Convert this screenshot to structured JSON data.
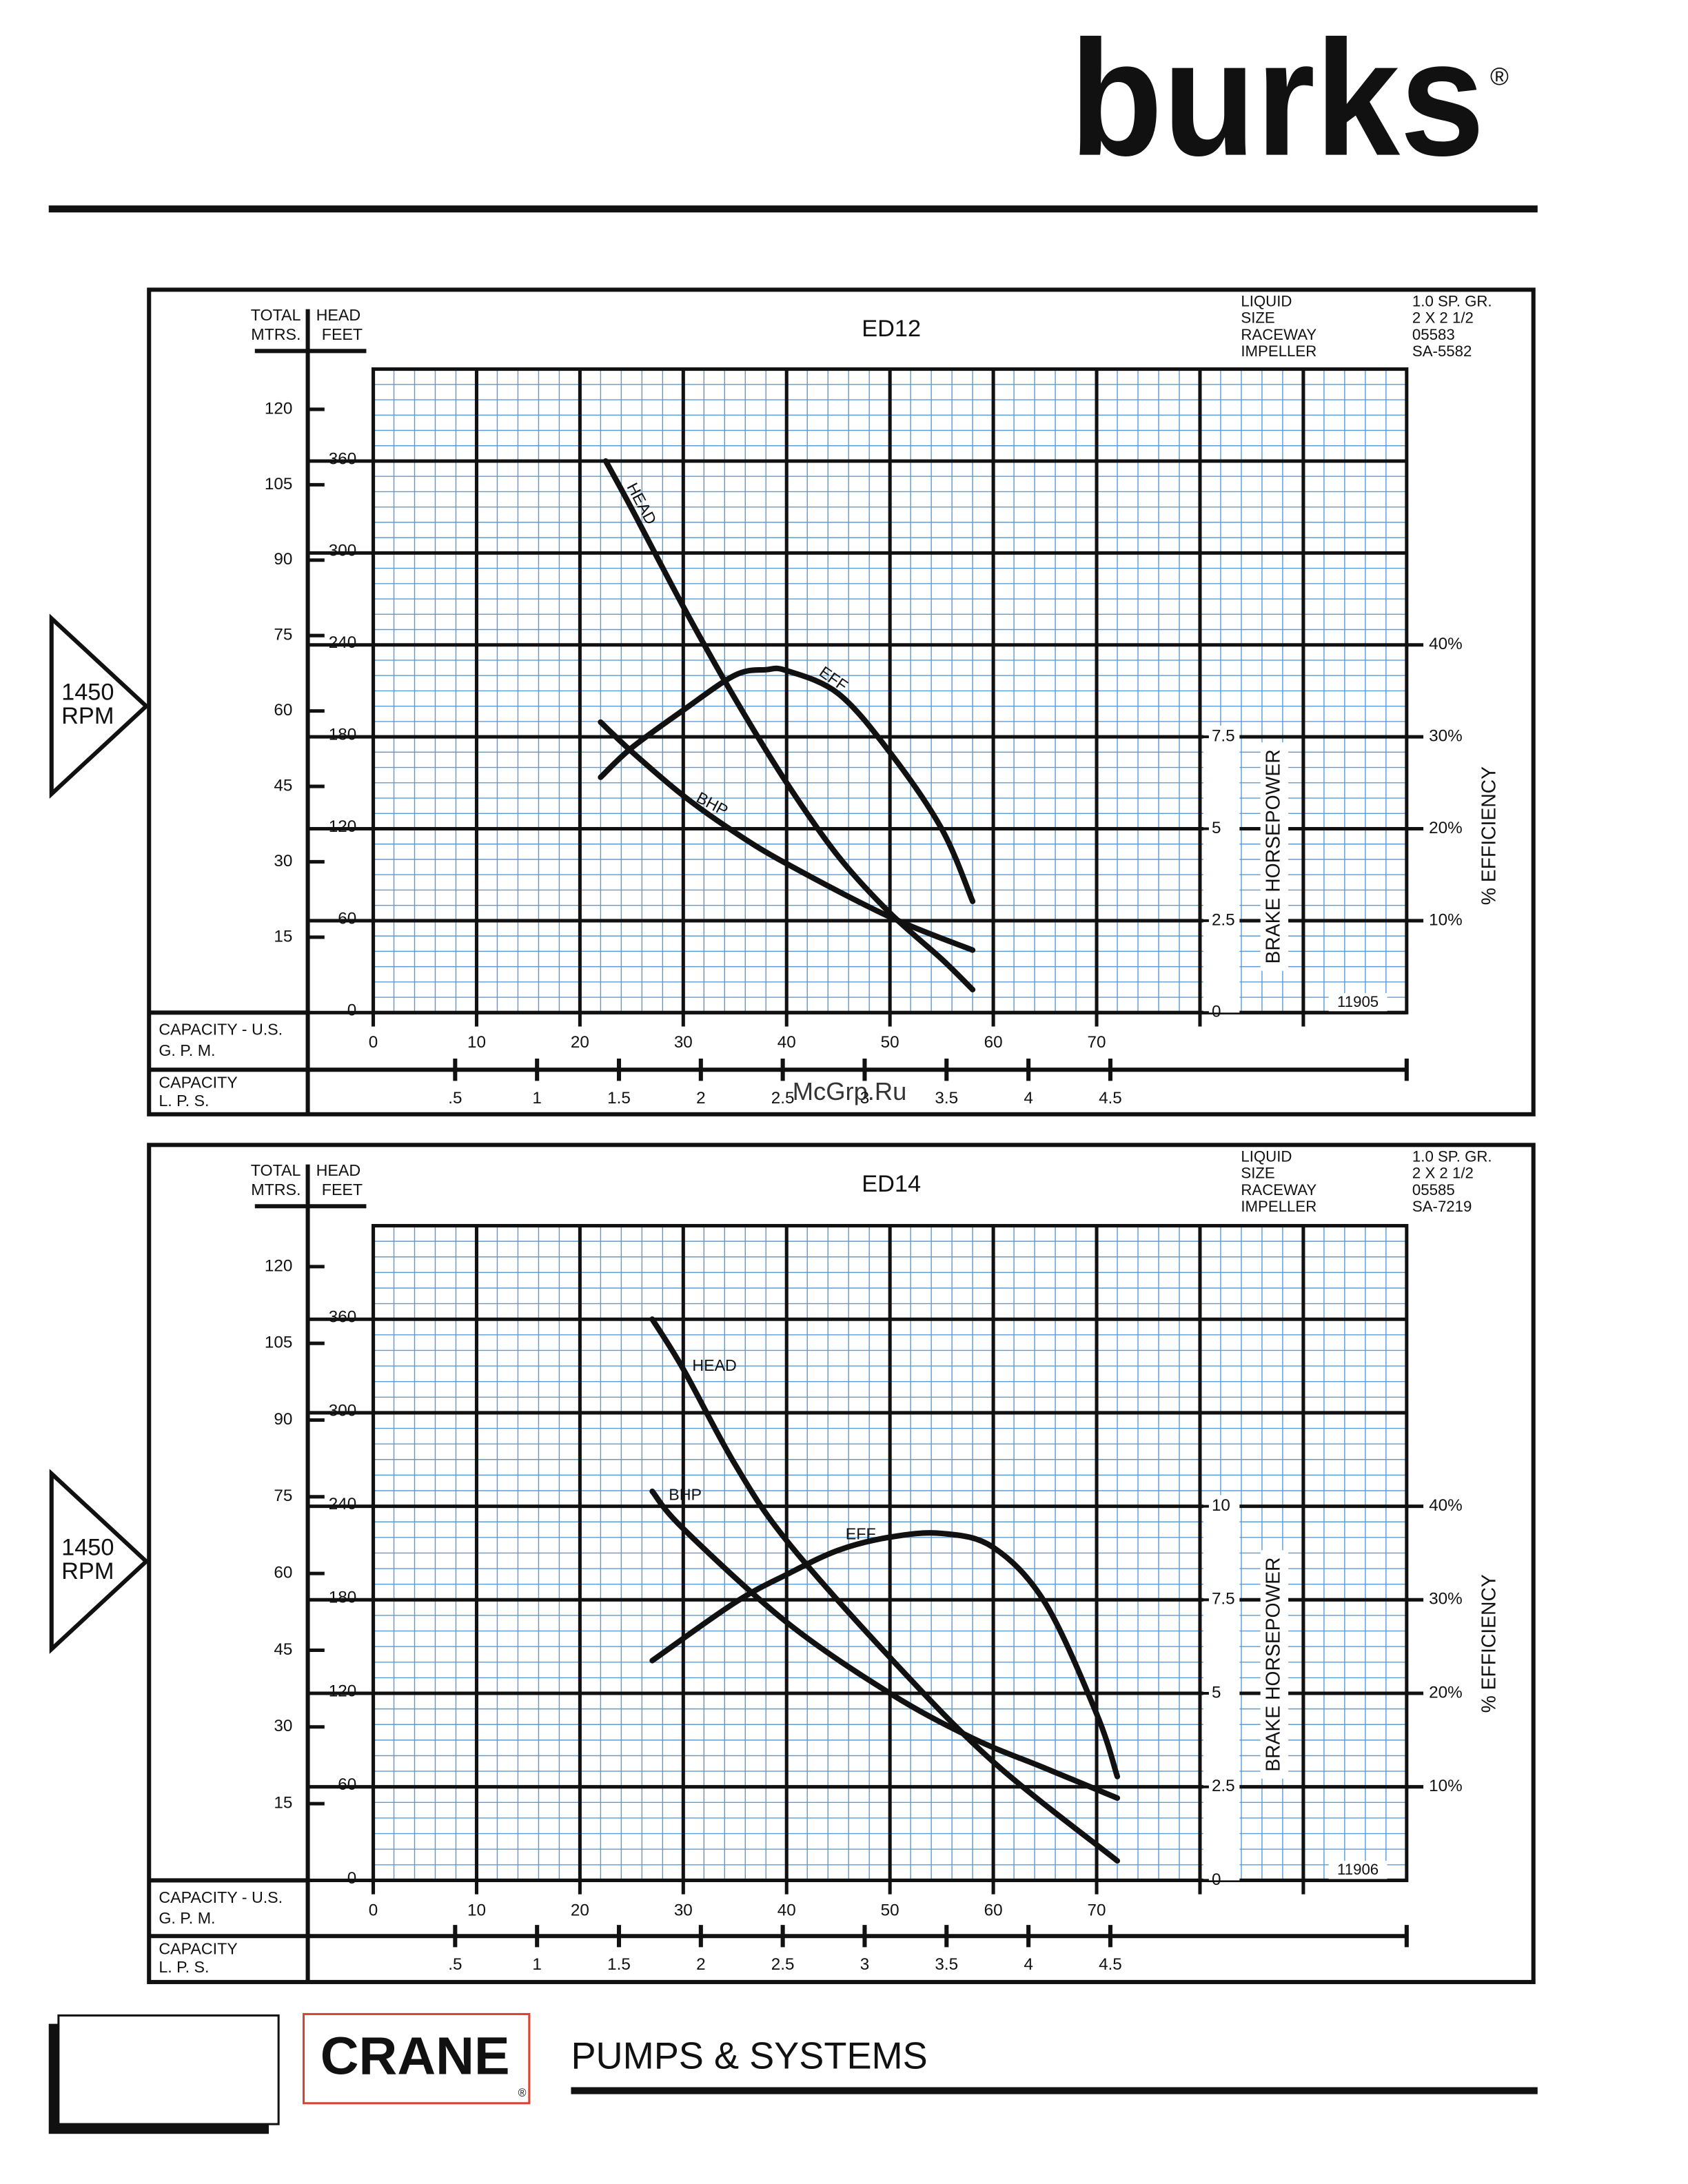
{
  "header": {
    "brand": "burks",
    "registered": "®"
  },
  "watermark": "McGrp.Ru",
  "footer": {
    "company": "CRANE",
    "registered": "®",
    "division": "PUMPS & SYSTEMS"
  },
  "chart_data": [
    {
      "type": "line",
      "title": "ED12",
      "code": "11905",
      "speed": [
        "1450",
        "RPM"
      ],
      "specs": [
        {
          "label": "LIQUID",
          "value": "1.0 SP. GR."
        },
        {
          "label": "SIZE",
          "value": "2 X 2 1/2"
        },
        {
          "label": "RACEWAY",
          "value": "05583"
        },
        {
          "label": "IMPELLER",
          "value": "SA-5582"
        }
      ],
      "y_label": {
        "total": "TOTAL",
        "head": "HEAD",
        "mtrs": "MTRS.",
        "feet": "FEET"
      },
      "x_label": [
        "CAPACITY - U.S.",
        "G. P. M."
      ],
      "x2_label": [
        "CAPACITY",
        "L. P. S."
      ],
      "y2_label": "%  EFFICIENCY",
      "y3_label": "BRAKE HORSEPOWER",
      "xlim": [
        0,
        100
      ],
      "xticks": [
        0,
        10,
        20,
        30,
        40,
        50,
        60,
        70
      ],
      "x2lim": [
        0,
        6.309
      ],
      "x2ticks": [
        {
          "value": 0.5,
          "label": ".5"
        },
        1,
        1.5,
        2,
        2.5,
        3,
        3.5,
        4,
        4.5
      ],
      "ylim": [
        0,
        420
      ],
      "yticks": [
        0,
        60,
        120,
        180,
        240,
        300,
        360
      ],
      "ymlim": [
        0,
        128
      ],
      "ymticks": [
        15,
        30,
        45,
        60,
        75,
        90,
        105,
        120
      ],
      "y2lim": [
        0,
        70
      ],
      "y2ticks": [
        {
          "value": 10,
          "label": "10%"
        },
        {
          "value": 20,
          "label": "20%"
        },
        {
          "value": 30,
          "label": "30%"
        },
        {
          "value": 40,
          "label": "40%"
        }
      ],
      "y3lim": [
        0,
        17.5
      ],
      "y3ticks": [
        0,
        2.5,
        5,
        7.5
      ],
      "grid": true,
      "series": [
        {
          "name": "HEAD",
          "color": "#111111",
          "axis": "y",
          "x": [
            22.5,
            25,
            30,
            35,
            40,
            45,
            50,
            55,
            58
          ],
          "values": [
            360,
            329,
            265,
            205,
            150,
            102,
            65,
            35,
            15
          ]
        },
        {
          "name": "EFF",
          "color": "#111111",
          "axis": "y2",
          "x": [
            22,
            25,
            30,
            35,
            38,
            40,
            45,
            50,
            55,
            58
          ],
          "values": [
            25.6,
            28.8,
            32.9,
            36.7,
            37.3,
            37.2,
            34.7,
            28.3,
            20,
            12.1
          ]
        },
        {
          "name": "BHP",
          "color": "#111111",
          "axis": "y3",
          "x": [
            22,
            25,
            30,
            35,
            40,
            50,
            58
          ],
          "values": [
            7.9,
            7.1,
            5.9,
            4.9,
            4.05,
            2.6,
            1.7
          ]
        }
      ]
    },
    {
      "type": "line",
      "title": "ED14",
      "code": "11906",
      "speed": [
        "1450",
        "RPM"
      ],
      "specs": [
        {
          "label": "LIQUID",
          "value": "1.0 SP. GR."
        },
        {
          "label": "SIZE",
          "value": "2 X 2 1/2"
        },
        {
          "label": "RACEWAY",
          "value": "05585"
        },
        {
          "label": "IMPELLER",
          "value": "SA-7219"
        }
      ],
      "y_label": {
        "total": "TOTAL",
        "head": "HEAD",
        "mtrs": "MTRS.",
        "feet": "FEET"
      },
      "x_label": [
        "CAPACITY - U.S.",
        "G. P. M."
      ],
      "x2_label": [
        "CAPACITY",
        "L. P. S."
      ],
      "y2_label": "%  EFFICIENCY",
      "y3_label": "BRAKE HORSEPOWER",
      "xlim": [
        0,
        100
      ],
      "xticks": [
        0,
        10,
        20,
        30,
        40,
        50,
        60,
        70
      ],
      "x2lim": [
        0,
        6.309
      ],
      "x2ticks": [
        {
          "value": 0.5,
          "label": ".5"
        },
        1,
        1.5,
        2,
        2.5,
        3,
        3.5,
        4,
        4.5
      ],
      "ylim": [
        0,
        420
      ],
      "yticks": [
        0,
        60,
        120,
        180,
        240,
        300,
        360
      ],
      "ymlim": [
        0,
        128
      ],
      "ymticks": [
        15,
        30,
        45,
        60,
        75,
        90,
        105,
        120
      ],
      "y2lim": [
        0,
        70
      ],
      "y2ticks": [
        {
          "value": 10,
          "label": "10%"
        },
        {
          "value": 20,
          "label": "20%"
        },
        {
          "value": 30,
          "label": "30%"
        },
        {
          "value": 40,
          "label": "40%"
        }
      ],
      "y3lim": [
        0,
        17.5
      ],
      "y3ticks": [
        0,
        2.5,
        5,
        7.5,
        10
      ],
      "grid": true,
      "series": [
        {
          "name": "HEAD",
          "color": "#111111",
          "axis": "y",
          "x": [
            27,
            30,
            35,
            40,
            50,
            60,
            72
          ],
          "values": [
            360,
            328,
            267,
            218,
            143,
            76,
            12.5
          ]
        },
        {
          "name": "EFF",
          "color": "#111111",
          "axis": "y2",
          "x": [
            27,
            35,
            40,
            45,
            50,
            55,
            60,
            65,
            70,
            72
          ],
          "values": [
            23.5,
            29.7,
            32.7,
            35.3,
            36.7,
            37.1,
            35.6,
            29.7,
            17.8,
            11.1
          ]
        },
        {
          "name": "BHP",
          "color": "#111111",
          "axis": "y3",
          "x": [
            27,
            30,
            40,
            50,
            58,
            65,
            72
          ],
          "values": [
            10.4,
            9.4,
            6.9,
            5.0,
            3.8,
            3.0,
            2.2
          ]
        }
      ]
    }
  ]
}
